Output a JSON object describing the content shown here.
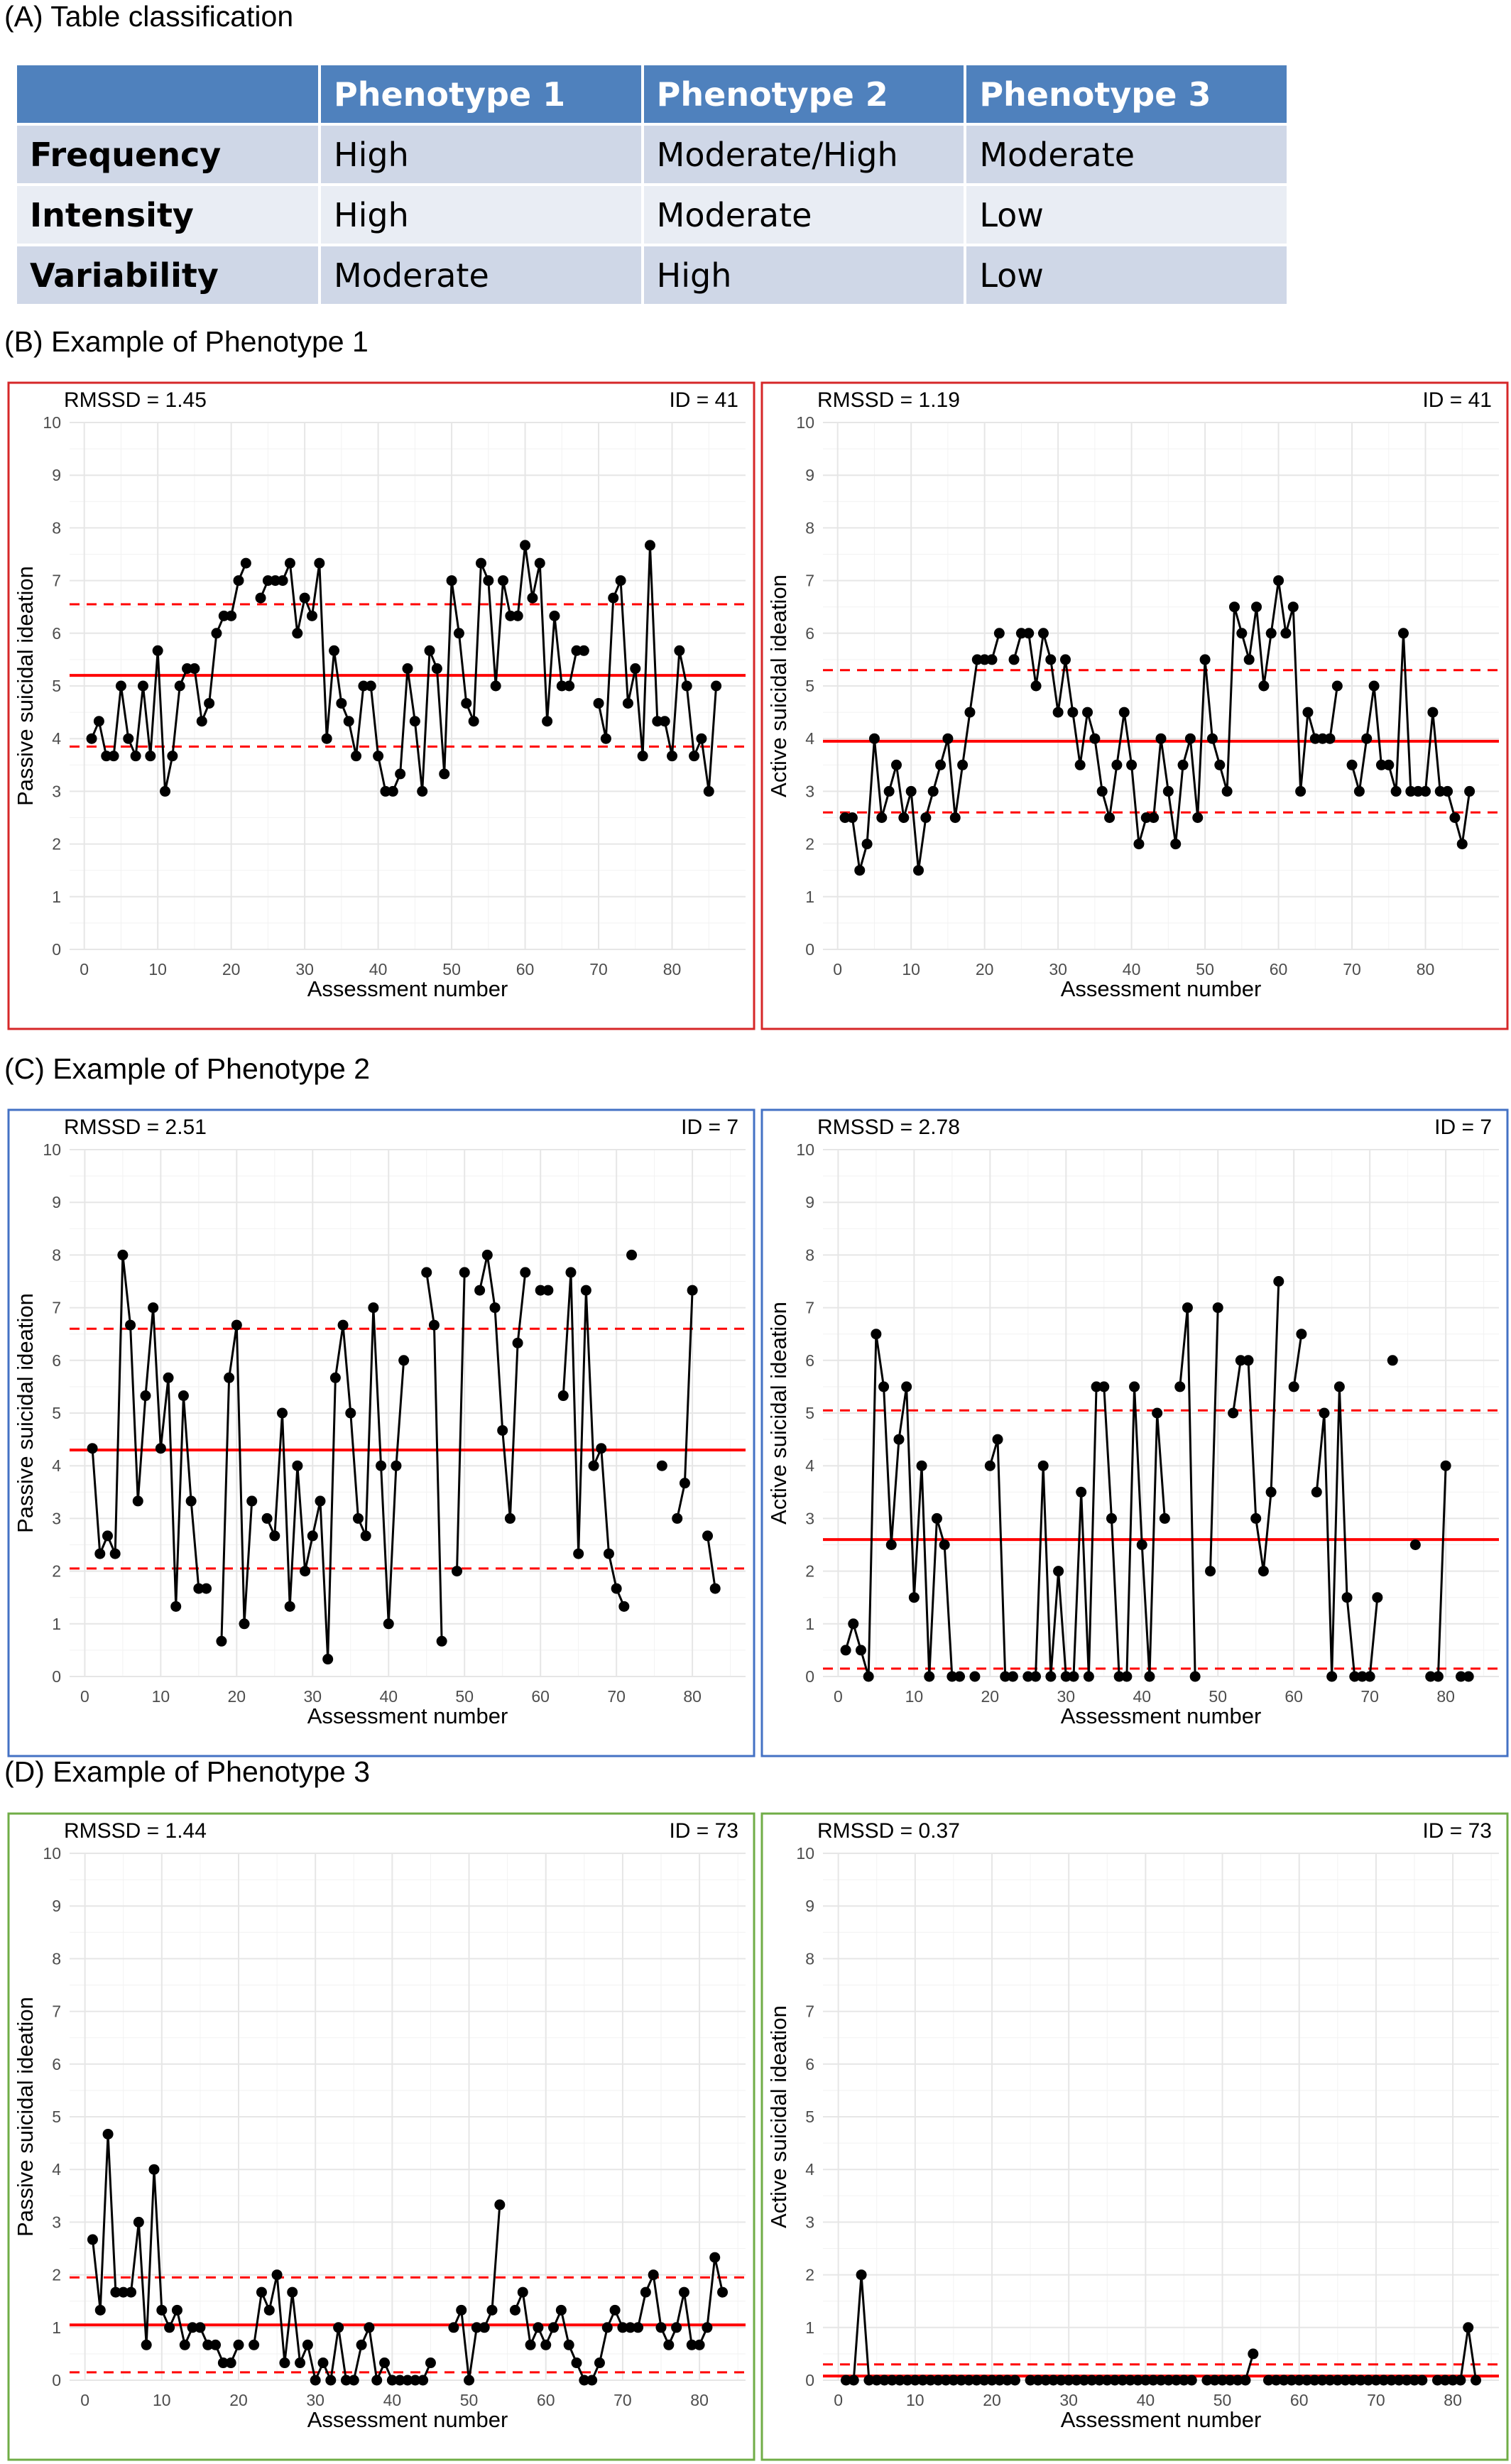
{
  "sections": {
    "a": "(A) Table classification",
    "b": "(B) Example of Phenotype 1",
    "c": "(C) Example of Phenotype 2",
    "d": "(D) Example of Phenotype 3"
  },
  "table": {
    "header": [
      "",
      "Phenotype 1",
      "Phenotype 2",
      "Phenotype 3"
    ],
    "rows": [
      {
        "label": "Frequency",
        "cells": [
          "High",
          "Moderate/High",
          "Moderate"
        ]
      },
      {
        "label": "Intensity",
        "cells": [
          "High",
          "Moderate",
          "Low"
        ]
      },
      {
        "label": "Variability",
        "cells": [
          "Moderate",
          "High",
          "Low"
        ]
      }
    ],
    "header_color": "#4f81bd",
    "row_colors": [
      "#cfd7e7",
      "#e9edf4"
    ]
  },
  "colors": {
    "phenotype1_border": "#d62728",
    "phenotype2_border": "#4472c4",
    "phenotype3_border": "#70ad47",
    "mean_line": "#ff0000",
    "points": "#000000"
  },
  "chart_data": [
    {
      "id": "b-passive",
      "type": "line",
      "rmssd": "RMSSD =  1.45",
      "id_label": "ID = 41",
      "xlabel": "Assessment number",
      "ylabel": "Passive suicidal ideation",
      "xlim": [
        -2,
        90
      ],
      "ylim": [
        0,
        10
      ],
      "xticks": [
        "0",
        "10",
        "20",
        "30",
        "40",
        "50",
        "60",
        "70",
        "80"
      ],
      "yticks": [
        "0",
        "1",
        "2",
        "3",
        "4",
        "5",
        "6",
        "7",
        "8",
        "9",
        "10"
      ],
      "mean": 5.2,
      "upper": 6.55,
      "lower": 3.85,
      "values": [
        4,
        4.33,
        3.67,
        3.67,
        5,
        4,
        3.67,
        5,
        3.67,
        5.67,
        3,
        3.67,
        5,
        5.33,
        5.33,
        4.33,
        4.67,
        6,
        6.33,
        6.33,
        7,
        7.33,
        null,
        6.67,
        7,
        7,
        7,
        7.33,
        6,
        6.67,
        6.33,
        7.33,
        4,
        5.67,
        4.67,
        4.33,
        3.67,
        5,
        5,
        3.67,
        3,
        3,
        3.33,
        5.33,
        4.33,
        3,
        5.67,
        5.33,
        3.33,
        7,
        6,
        4.67,
        4.33,
        7.33,
        7,
        5,
        7,
        6.33,
        6.33,
        7.67,
        6.67,
        7.33,
        4.33,
        6.33,
        5,
        5,
        5.67,
        5.67,
        null,
        4.67,
        4,
        6.67,
        7,
        4.67,
        5.33,
        3.67,
        7.67,
        4.33,
        4.33,
        3.67,
        5.67,
        5,
        3.67,
        4,
        3,
        5
      ]
    },
    {
      "id": "b-active",
      "type": "line",
      "rmssd": "RMSSD =  1.19",
      "id_label": "ID = 41",
      "xlabel": "Assessment number",
      "ylabel": "Active suicidal ideation",
      "xlim": [
        -2,
        90
      ],
      "ylim": [
        0,
        10
      ],
      "xticks": [
        "0",
        "10",
        "20",
        "30",
        "40",
        "50",
        "60",
        "70",
        "80"
      ],
      "yticks": [
        "0",
        "1",
        "2",
        "3",
        "4",
        "5",
        "6",
        "7",
        "8",
        "9",
        "10"
      ],
      "mean": 3.95,
      "upper": 5.3,
      "lower": 2.6,
      "values": [
        2.5,
        2.5,
        1.5,
        2,
        4,
        2.5,
        3,
        3.5,
        2.5,
        3,
        1.5,
        2.5,
        3,
        3.5,
        4,
        2.5,
        3.5,
        4.5,
        5.5,
        5.5,
        5.5,
        6,
        null,
        5.5,
        6,
        6,
        5,
        6,
        5.5,
        4.5,
        5.5,
        4.5,
        3.5,
        4.5,
        4,
        3,
        2.5,
        3.5,
        4.5,
        3.5,
        2,
        2.5,
        2.5,
        4,
        3,
        2,
        3.5,
        4,
        2.5,
        5.5,
        4,
        3.5,
        3,
        6.5,
        6,
        5.5,
        6.5,
        5,
        6,
        7,
        6,
        6.5,
        3,
        4.5,
        4,
        4,
        4,
        5,
        null,
        3.5,
        3,
        4,
        5,
        3.5,
        3.5,
        3,
        6,
        3,
        3,
        3,
        4.5,
        3,
        3,
        2.5,
        2,
        3
      ]
    },
    {
      "id": "c-passive",
      "type": "line",
      "rmssd": "RMSSD =  2.51",
      "id_label": "ID = 7",
      "xlabel": "Assessment number",
      "ylabel": "Passive suicidal ideation",
      "xlim": [
        -2,
        87
      ],
      "ylim": [
        0,
        10
      ],
      "xticks": [
        "0",
        "10",
        "20",
        "30",
        "40",
        "50",
        "60",
        "70",
        "80"
      ],
      "yticks": [
        "0",
        "1",
        "2",
        "3",
        "4",
        "5",
        "6",
        "7",
        "8",
        "9",
        "10"
      ],
      "mean": 4.3,
      "upper": 6.6,
      "lower": 2.05,
      "values": [
        4.33,
        2.33,
        2.67,
        2.33,
        8,
        6.67,
        3.33,
        5.33,
        7,
        4.33,
        5.67,
        1.33,
        5.33,
        3.33,
        1.67,
        1.67,
        null,
        0.67,
        5.67,
        6.67,
        1,
        3.33,
        null,
        3,
        2.67,
        5,
        1.33,
        4,
        2,
        2.67,
        3.33,
        0.33,
        5.67,
        6.67,
        5,
        3,
        2.67,
        7,
        4,
        1,
        4,
        6,
        null,
        null,
        7.67,
        6.67,
        0.67,
        null,
        2,
        7.67,
        null,
        7.33,
        8,
        7,
        4.67,
        3,
        6.33,
        7.67,
        null,
        7.33,
        7.33,
        null,
        5.33,
        7.67,
        2.33,
        7.33,
        4,
        4.33,
        2.33,
        1.67,
        1.33,
        null,
        null,
        null,
        null,
        4,
        null,
        3,
        3.67,
        7.33,
        null,
        2.67,
        1.67
      ],
      "isolated": [
        {
          "x": 72,
          "y": 8
        }
      ]
    },
    {
      "id": "c-active",
      "type": "line",
      "rmssd": "RMSSD =  2.78",
      "id_label": "ID = 7",
      "xlabel": "Assessment number",
      "ylabel": "Active suicidal ideation",
      "xlim": [
        -2,
        87
      ],
      "ylim": [
        0,
        10
      ],
      "xticks": [
        "0",
        "10",
        "20",
        "30",
        "40",
        "50",
        "60",
        "70",
        "80"
      ],
      "yticks": [
        "0",
        "1",
        "2",
        "3",
        "4",
        "5",
        "6",
        "7",
        "8",
        "9",
        "10"
      ],
      "mean": 2.6,
      "upper": 5.05,
      "lower": 0.15,
      "values": [
        0.5,
        1,
        0.5,
        0,
        6.5,
        5.5,
        2.5,
        4.5,
        5.5,
        1.5,
        4,
        0,
        3,
        2.5,
        0,
        0,
        null,
        0,
        null,
        4,
        4.5,
        0,
        0,
        null,
        0,
        0,
        4,
        0,
        2,
        0,
        0,
        3.5,
        0,
        5.5,
        5.5,
        3,
        0,
        0,
        5.5,
        2.5,
        0,
        5,
        3,
        null,
        5.5,
        7,
        0,
        null,
        2,
        7,
        null,
        5,
        6,
        6,
        3,
        2,
        3.5,
        7.5,
        null,
        5.5,
        6.5,
        null,
        3.5,
        5,
        0,
        5.5,
        1.5,
        0,
        0,
        0,
        1.5,
        null,
        6,
        null,
        null,
        2.5,
        null,
        0,
        0,
        4,
        null,
        0,
        0
      ]
    },
    {
      "id": "d-passive",
      "type": "line",
      "rmssd": "RMSSD =  1.44",
      "id_label": "ID = 73",
      "xlabel": "Assessment number",
      "ylabel": "Passive suicidal ideation",
      "xlim": [
        -2,
        86
      ],
      "ylim": [
        0,
        10
      ],
      "xticks": [
        "0",
        "10",
        "20",
        "30",
        "40",
        "50",
        "60",
        "70",
        "80"
      ],
      "yticks": [
        "0",
        "1",
        "2",
        "3",
        "4",
        "5",
        "6",
        "7",
        "8",
        "9",
        "10"
      ],
      "mean": 1.05,
      "upper": 1.95,
      "lower": 0.15,
      "values": [
        2.67,
        1.33,
        4.67,
        1.67,
        1.67,
        1.67,
        3,
        0.67,
        4,
        1.33,
        1,
        1.33,
        0.67,
        1,
        1,
        0.67,
        0.67,
        0.33,
        0.33,
        0.67,
        null,
        0.67,
        1.67,
        1.33,
        2,
        0.33,
        1.67,
        0.33,
        0.67,
        0,
        0.33,
        0,
        1,
        0,
        0,
        0.67,
        1,
        0,
        0.33,
        0,
        0,
        0,
        0,
        0,
        0.33,
        null,
        null,
        1,
        1.33,
        0,
        1,
        1,
        1.33,
        3.33,
        null,
        1.33,
        1.67,
        0.67,
        1,
        0.67,
        1,
        1.33,
        0.67,
        0.33,
        0,
        0,
        0.33,
        1,
        1.33,
        1,
        1,
        1,
        1.67,
        2,
        1,
        0.67,
        1,
        1.67,
        0.67,
        0.67,
        1,
        2.33,
        1.67
      ]
    },
    {
      "id": "d-active",
      "type": "line",
      "rmssd": "RMSSD =  0.37",
      "id_label": "ID = 73",
      "xlabel": "Assessment number",
      "ylabel": "Active suicidal ideation",
      "xlim": [
        -2,
        86
      ],
      "ylim": [
        0,
        10
      ],
      "xticks": [
        "0",
        "10",
        "20",
        "30",
        "40",
        "50",
        "60",
        "70",
        "80"
      ],
      "yticks": [
        "0",
        "1",
        "2",
        "3",
        "4",
        "5",
        "6",
        "7",
        "8",
        "9",
        "10"
      ],
      "mean": 0.08,
      "upper": 0.3,
      "lower": 0.08,
      "values": [
        0,
        0,
        2,
        0,
        0,
        0,
        0,
        0,
        0,
        0,
        0,
        0,
        0,
        0,
        0,
        0,
        0,
        0,
        0,
        0,
        0,
        0,
        0,
        null,
        0,
        0,
        0,
        0,
        0,
        0,
        0,
        0,
        0,
        0,
        0,
        0,
        0,
        0,
        0,
        0,
        0,
        0,
        0,
        0,
        0,
        0,
        null,
        0,
        0,
        0,
        0,
        0,
        0,
        0.5,
        null,
        0,
        0,
        0,
        0,
        0,
        0,
        0,
        0,
        0,
        0,
        0,
        0,
        0,
        0,
        0,
        0,
        0,
        0,
        0,
        0,
        0,
        null,
        0,
        0,
        0,
        0,
        1,
        0
      ]
    }
  ]
}
